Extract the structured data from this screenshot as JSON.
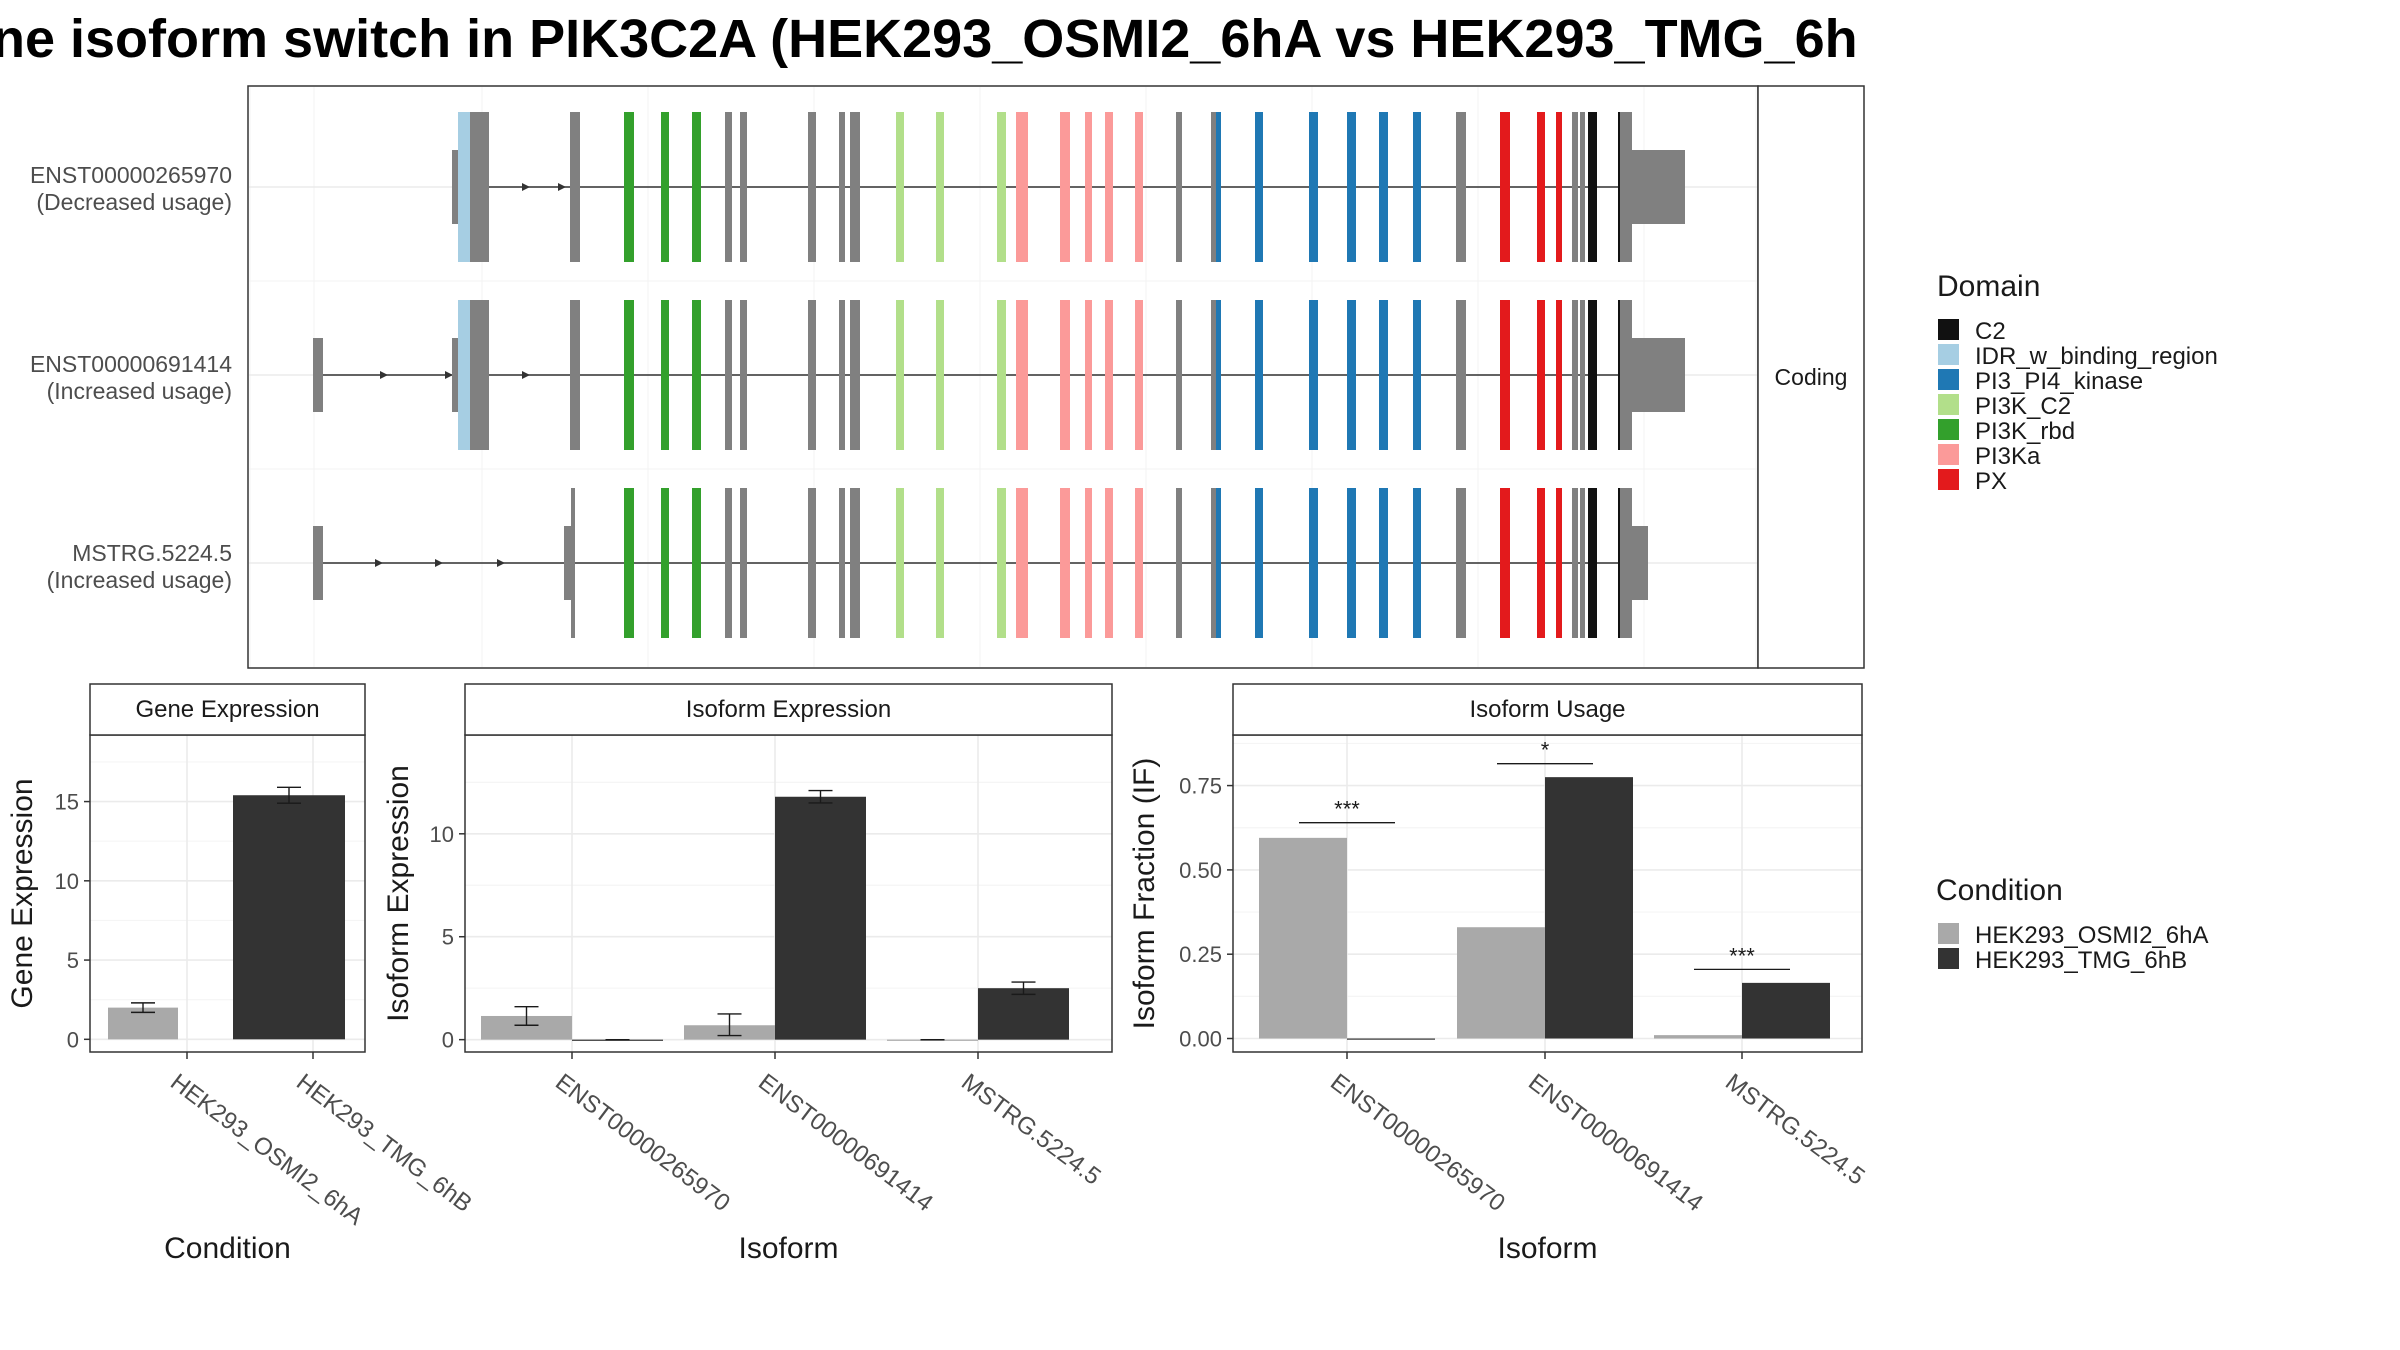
{
  "title": "ne isoform switch in PIK3C2A (HEK293_OSMI2_6hA vs HEK293_TMG_6h",
  "colors": {
    "C2": "#111111",
    "IDR_w_binding_region": "#a6cee3",
    "PI3_PI4_kinase": "#1f78b4",
    "PI3K_C2": "#b2df8a",
    "PI3K_rbd": "#33a02c",
    "PI3Ka": "#fb9a99",
    "PX": "#e31a1c",
    "none": "#808080",
    "cond_A": "#a9a9a9",
    "cond_B": "#333333"
  },
  "structure": {
    "strip_label": "Coding",
    "isoforms": [
      {
        "id": "ENST00000265970",
        "note": "(Decreased usage)"
      },
      {
        "id": "ENST00000691414",
        "note": "(Increased usage)"
      },
      {
        "id": "MSTRG.5224.5",
        "note": "(Increased usage)"
      }
    ],
    "domain_legend_title": "Domain",
    "domains": [
      "C2",
      "IDR_w_binding_region",
      "PI3_PI4_kinase",
      "PI3K_C2",
      "PI3K_rbd",
      "PI3Ka",
      "PX"
    ]
  },
  "condition_legend": {
    "title": "Condition",
    "items": [
      "HEK293_OSMI2_6hA",
      "HEK293_TMG_6hB"
    ]
  },
  "chart_data": [
    {
      "type": "bar",
      "title": "Gene Expression",
      "xlabel": "Condition",
      "ylabel": "Gene Expression",
      "categories": [
        "HEK293_OSMI2_6hA",
        "HEK293_TMG_6hB"
      ],
      "values": [
        2.0,
        15.4
      ],
      "errors": [
        [
          1.7,
          2.3
        ],
        [
          14.9,
          15.9
        ]
      ],
      "ylim": [
        -0.8,
        19.2
      ],
      "yticks": [
        0,
        5,
        10,
        15
      ]
    },
    {
      "type": "bar",
      "title": "Isoform Expression",
      "xlabel": "Isoform",
      "ylabel": "Isoform Expression",
      "categories": [
        "ENST00000265970",
        "ENST00000691414",
        "MSTRG.5224.5"
      ],
      "series": [
        {
          "name": "HEK293_OSMI2_6hA",
          "values": [
            1.15,
            0.7,
            0.0
          ],
          "errors": [
            [
              0.7,
              1.6
            ],
            [
              0.2,
              1.25
            ],
            [
              0.0,
              0.0
            ]
          ]
        },
        {
          "name": "HEK293_TMG_6hB",
          "values": [
            0.0,
            11.8,
            2.5
          ],
          "errors": [
            [
              0.0,
              0.0
            ],
            [
              11.5,
              12.1
            ],
            [
              2.2,
              2.8
            ]
          ]
        }
      ],
      "ylim": [
        -0.6,
        14.8
      ],
      "yticks": [
        0,
        5,
        10
      ]
    },
    {
      "type": "bar",
      "title": "Isoform Usage",
      "xlabel": "Isoform",
      "ylabel": "Isoform Fraction (IF)",
      "categories": [
        "ENST00000265970",
        "ENST00000691414",
        "MSTRG.5224.5"
      ],
      "series": [
        {
          "name": "HEK293_OSMI2_6hA",
          "values": [
            0.595,
            0.33,
            0.01
          ]
        },
        {
          "name": "HEK293_TMG_6hB",
          "values": [
            0.0,
            0.775,
            0.165
          ]
        }
      ],
      "significance": [
        "***",
        "*",
        "***"
      ],
      "sig_level": [
        0.64,
        0.815,
        0.205
      ],
      "ylim": [
        -0.04,
        0.9
      ],
      "yticks": [
        "0.00",
        "0.25",
        "0.50",
        "0.75"
      ]
    }
  ]
}
